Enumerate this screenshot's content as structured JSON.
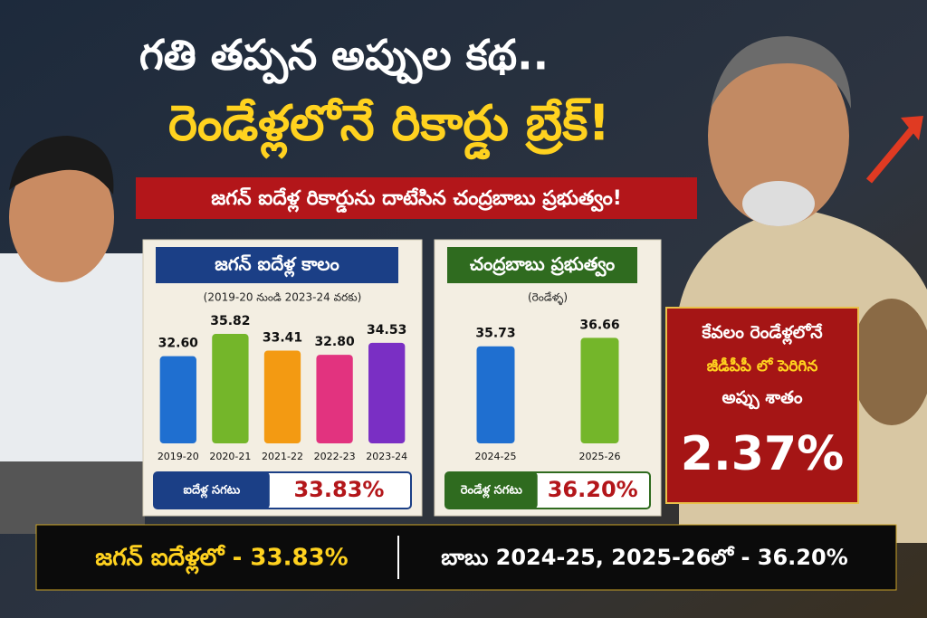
{
  "header": {
    "title_line1": "గతి తప్పన అప్పుల కథ..",
    "title_line2": "రెండేళ్లలోనే రికార్డు బ్రేక్!",
    "subtitle": "జగన్ ఐదేళ్ల రికార్డును దాటేసిన చంద్రబాబు ప్రభుత్వం!"
  },
  "chart_data": [
    {
      "type": "bar",
      "title": "జగన్ ఐదేళ్ల కాలం",
      "subtitle": "(2019-20 నుండి 2023-24 వరకు)",
      "categories": [
        "2019-20",
        "2020-21",
        "2021-22",
        "2022-23",
        "2023-24"
      ],
      "values": [
        32.6,
        35.82,
        33.41,
        32.8,
        34.53
      ],
      "value_labels": [
        "32.60",
        "35.82",
        "33.41",
        "32.80",
        "34.53"
      ],
      "colors": [
        "#1f6fd0",
        "#74b62a",
        "#f39a12",
        "#e2337f",
        "#7a2fc4"
      ],
      "ylim": [
        20,
        37
      ],
      "average_label": "ఐదేళ్ల సగటు",
      "average_value": "33.83%"
    },
    {
      "type": "bar",
      "title": "చంద్రబాబు ప్రభుత్వం",
      "subtitle": "(రెండేళ్ళ)",
      "categories": [
        "2024-25",
        "2025-26"
      ],
      "values": [
        35.73,
        36.66
      ],
      "value_labels": [
        "35.73",
        "36.66"
      ],
      "colors": [
        "#1f6fd0",
        "#74b62a"
      ],
      "ylim": [
        25,
        38
      ],
      "average_label": "రెండేళ్ల సగటు",
      "average_value": "36.20%"
    }
  ],
  "badge": {
    "line1": "కేవలం రెండేళ్లలోనే",
    "line2": "జీడీపీపీ లో పెరిగిన",
    "line3": "అప్పు శాతం",
    "value": "2.37%"
  },
  "footer": {
    "left": "జగన్ ఐదేళ్లలో - 33.83%",
    "right": "బాబు 2024-25, 2025-26లో - 36.20%"
  }
}
